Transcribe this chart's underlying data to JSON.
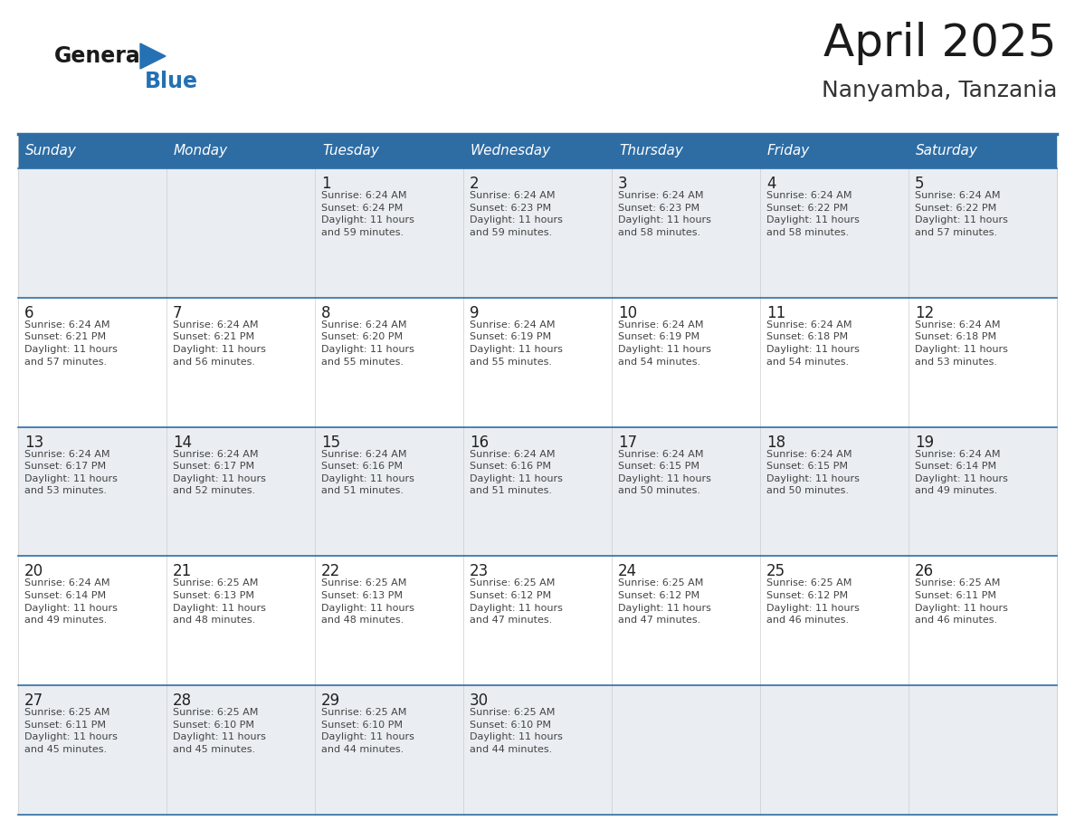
{
  "title": "April 2025",
  "subtitle": "Nanyamba, Tanzania",
  "header_bg": "#2E6DA4",
  "header_text_color": "#FFFFFF",
  "row_bg_odd": "#EAEEF2",
  "row_bg_even": "#FFFFFF",
  "border_color": "#2E6DA4",
  "text_color": "#333333",
  "day_num_color": "#222222",
  "info_text_color": "#444444",
  "days_of_week": [
    "Sunday",
    "Monday",
    "Tuesday",
    "Wednesday",
    "Thursday",
    "Friday",
    "Saturday"
  ],
  "weeks": [
    [
      {
        "day": "",
        "info": ""
      },
      {
        "day": "",
        "info": ""
      },
      {
        "day": "1",
        "info": "Sunrise: 6:24 AM\nSunset: 6:24 PM\nDaylight: 11 hours\nand 59 minutes."
      },
      {
        "day": "2",
        "info": "Sunrise: 6:24 AM\nSunset: 6:23 PM\nDaylight: 11 hours\nand 59 minutes."
      },
      {
        "day": "3",
        "info": "Sunrise: 6:24 AM\nSunset: 6:23 PM\nDaylight: 11 hours\nand 58 minutes."
      },
      {
        "day": "4",
        "info": "Sunrise: 6:24 AM\nSunset: 6:22 PM\nDaylight: 11 hours\nand 58 minutes."
      },
      {
        "day": "5",
        "info": "Sunrise: 6:24 AM\nSunset: 6:22 PM\nDaylight: 11 hours\nand 57 minutes."
      }
    ],
    [
      {
        "day": "6",
        "info": "Sunrise: 6:24 AM\nSunset: 6:21 PM\nDaylight: 11 hours\nand 57 minutes."
      },
      {
        "day": "7",
        "info": "Sunrise: 6:24 AM\nSunset: 6:21 PM\nDaylight: 11 hours\nand 56 minutes."
      },
      {
        "day": "8",
        "info": "Sunrise: 6:24 AM\nSunset: 6:20 PM\nDaylight: 11 hours\nand 55 minutes."
      },
      {
        "day": "9",
        "info": "Sunrise: 6:24 AM\nSunset: 6:19 PM\nDaylight: 11 hours\nand 55 minutes."
      },
      {
        "day": "10",
        "info": "Sunrise: 6:24 AM\nSunset: 6:19 PM\nDaylight: 11 hours\nand 54 minutes."
      },
      {
        "day": "11",
        "info": "Sunrise: 6:24 AM\nSunset: 6:18 PM\nDaylight: 11 hours\nand 54 minutes."
      },
      {
        "day": "12",
        "info": "Sunrise: 6:24 AM\nSunset: 6:18 PM\nDaylight: 11 hours\nand 53 minutes."
      }
    ],
    [
      {
        "day": "13",
        "info": "Sunrise: 6:24 AM\nSunset: 6:17 PM\nDaylight: 11 hours\nand 53 minutes."
      },
      {
        "day": "14",
        "info": "Sunrise: 6:24 AM\nSunset: 6:17 PM\nDaylight: 11 hours\nand 52 minutes."
      },
      {
        "day": "15",
        "info": "Sunrise: 6:24 AM\nSunset: 6:16 PM\nDaylight: 11 hours\nand 51 minutes."
      },
      {
        "day": "16",
        "info": "Sunrise: 6:24 AM\nSunset: 6:16 PM\nDaylight: 11 hours\nand 51 minutes."
      },
      {
        "day": "17",
        "info": "Sunrise: 6:24 AM\nSunset: 6:15 PM\nDaylight: 11 hours\nand 50 minutes."
      },
      {
        "day": "18",
        "info": "Sunrise: 6:24 AM\nSunset: 6:15 PM\nDaylight: 11 hours\nand 50 minutes."
      },
      {
        "day": "19",
        "info": "Sunrise: 6:24 AM\nSunset: 6:14 PM\nDaylight: 11 hours\nand 49 minutes."
      }
    ],
    [
      {
        "day": "20",
        "info": "Sunrise: 6:24 AM\nSunset: 6:14 PM\nDaylight: 11 hours\nand 49 minutes."
      },
      {
        "day": "21",
        "info": "Sunrise: 6:25 AM\nSunset: 6:13 PM\nDaylight: 11 hours\nand 48 minutes."
      },
      {
        "day": "22",
        "info": "Sunrise: 6:25 AM\nSunset: 6:13 PM\nDaylight: 11 hours\nand 48 minutes."
      },
      {
        "day": "23",
        "info": "Sunrise: 6:25 AM\nSunset: 6:12 PM\nDaylight: 11 hours\nand 47 minutes."
      },
      {
        "day": "24",
        "info": "Sunrise: 6:25 AM\nSunset: 6:12 PM\nDaylight: 11 hours\nand 47 minutes."
      },
      {
        "day": "25",
        "info": "Sunrise: 6:25 AM\nSunset: 6:12 PM\nDaylight: 11 hours\nand 46 minutes."
      },
      {
        "day": "26",
        "info": "Sunrise: 6:25 AM\nSunset: 6:11 PM\nDaylight: 11 hours\nand 46 minutes."
      }
    ],
    [
      {
        "day": "27",
        "info": "Sunrise: 6:25 AM\nSunset: 6:11 PM\nDaylight: 11 hours\nand 45 minutes."
      },
      {
        "day": "28",
        "info": "Sunrise: 6:25 AM\nSunset: 6:10 PM\nDaylight: 11 hours\nand 45 minutes."
      },
      {
        "day": "29",
        "info": "Sunrise: 6:25 AM\nSunset: 6:10 PM\nDaylight: 11 hours\nand 44 minutes."
      },
      {
        "day": "30",
        "info": "Sunrise: 6:25 AM\nSunset: 6:10 PM\nDaylight: 11 hours\nand 44 minutes."
      },
      {
        "day": "",
        "info": ""
      },
      {
        "day": "",
        "info": ""
      },
      {
        "day": "",
        "info": ""
      }
    ]
  ],
  "logo_general_color": "#1a1a1a",
  "logo_blue_color": "#2471B3",
  "logo_triangle_color": "#2471B3",
  "title_fontsize": 36,
  "subtitle_fontsize": 18,
  "header_fontsize": 11,
  "day_num_fontsize": 12,
  "info_fontsize": 8
}
